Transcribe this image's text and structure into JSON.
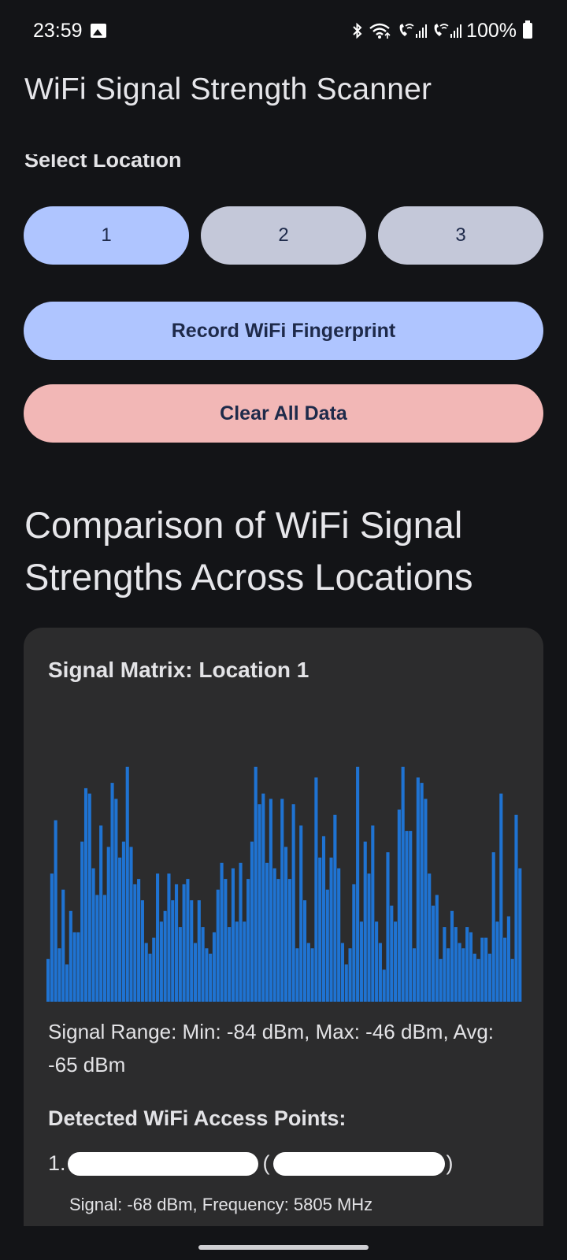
{
  "status_bar": {
    "time": "23:59",
    "battery": "100%",
    "icons": [
      "image-icon",
      "bluetooth-icon",
      "wifi-icon",
      "wifi-call-sim1-icon",
      "wifi-call-sim2-icon",
      "battery-icon"
    ]
  },
  "app": {
    "title": "WiFi Signal Strength Scanner"
  },
  "location_selector": {
    "label": "Select Location",
    "options": [
      "1",
      "2",
      "3"
    ],
    "selected": "1"
  },
  "actions": {
    "record_label": "Record WiFi Fingerprint",
    "clear_label": "Clear All Data"
  },
  "colors": {
    "background": "#131417",
    "primary": "#afc5ff",
    "secondary": "#c4c8d9",
    "danger": "#f2b7b6",
    "card": "#2c2c2d",
    "bar": "#1f73d2"
  },
  "comparison": {
    "heading": "Comparison of WiFi Signal Strengths Across Locations",
    "card_title": "Signal Matrix: Location 1",
    "range_text": "Signal Range: Min: -84 dBm, Max: -46 dBm, Avg: -65 dBm",
    "access_points_heading": "Detected WiFi Access Points:",
    "access_point": {
      "index": "1.",
      "signal_text": "Signal: -68 dBm, Frequency: 5805 MHz"
    }
  },
  "chart_data": {
    "type": "bar",
    "title": "",
    "xlabel": "",
    "ylabel": "",
    "unit": "dBm",
    "ylim": [
      -90,
      -45
    ],
    "values": [
      -82,
      -66,
      -56,
      -80,
      -69,
      -83,
      -73,
      -77,
      -77,
      -60,
      -50,
      -51,
      -65,
      -70,
      -57,
      -70,
      -61,
      -49,
      -52,
      -63,
      -60,
      -46,
      -61,
      -68,
      -67,
      -71,
      -79,
      -81,
      -78,
      -66,
      -75,
      -73,
      -66,
      -71,
      -68,
      -76,
      -68,
      -67,
      -71,
      -79,
      -71,
      -76,
      -80,
      -81,
      -77,
      -69,
      -64,
      -67,
      -76,
      -65,
      -75,
      -64,
      -75,
      -67,
      -60,
      -46,
      -53,
      -51,
      -64,
      -52,
      -65,
      -67,
      -52,
      -61,
      -67,
      -53,
      -80,
      -57,
      -71,
      -79,
      -80,
      -48,
      -63,
      -59,
      -69,
      -63,
      -55,
      -65,
      -79,
      -83,
      -80,
      -68,
      -46,
      -75,
      -60,
      -66,
      -57,
      -75,
      -79,
      -84,
      -62,
      -72,
      -75,
      -54,
      -46,
      -58,
      -58,
      -80,
      -48,
      -49,
      -52,
      -66,
      -72,
      -70,
      -82,
      -76,
      -80,
      -73,
      -76,
      -79,
      -80,
      -76,
      -77,
      -81,
      -82,
      -78,
      -78,
      -81,
      -62,
      -75,
      -51,
      -78,
      -74,
      -82,
      -55,
      -65
    ]
  }
}
